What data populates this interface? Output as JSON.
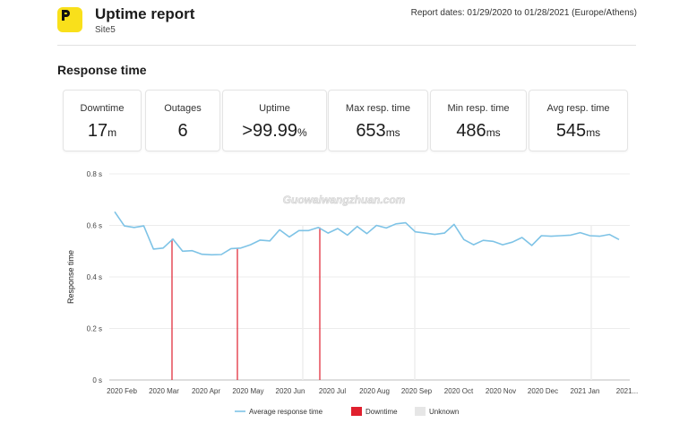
{
  "header": {
    "logo_letter": "p",
    "title": "Uptime report",
    "site": "Site5",
    "report_dates": "Report dates: 01/29/2020 to 01/28/2021 (Europe/Athens)",
    "logo_color": "#f9e01b"
  },
  "section": {
    "title": "Response time"
  },
  "stats": [
    {
      "label": "Downtime",
      "value": "17",
      "unit": "m"
    },
    {
      "label": "Outages",
      "value": "6",
      "unit": ""
    },
    {
      "label": "Uptime",
      "value": ">99.99",
      "unit": "%"
    },
    {
      "label": "Max resp. time",
      "value": "653",
      "unit": "ms"
    },
    {
      "label": "Min resp. time",
      "value": "486",
      "unit": "ms"
    },
    {
      "label": "Avg resp. time",
      "value": "545",
      "unit": "ms"
    }
  ],
  "watermark": "Guowaiwangzhuan.com",
  "chart_data": {
    "type": "line",
    "ylabel": "Response time",
    "y_ticks": [
      "0.8 s",
      "0.6 s",
      "0.4 s",
      "0.2 s",
      "0 s"
    ],
    "ylim": [
      0,
      0.8
    ],
    "x_ticks": [
      "2020 Feb",
      "2020 Mar",
      "2020 Apr",
      "2020 May",
      "2020 Jun",
      "2020 Jul",
      "2020 Aug",
      "2020 Sep",
      "2020 Oct",
      "2020 Nov",
      "2020 Dec",
      "2021 Jan",
      "2021..."
    ],
    "grid": "horizontal",
    "legend_position": "bottom",
    "series": [
      {
        "name": "Average response time",
        "color": "#7ec3e6",
        "values": [
          0.653,
          0.598,
          0.592,
          0.598,
          0.508,
          0.512,
          0.547,
          0.5,
          0.502,
          0.488,
          0.486,
          0.487,
          0.51,
          0.512,
          0.525,
          0.543,
          0.54,
          0.583,
          0.555,
          0.58,
          0.58,
          0.592,
          0.57,
          0.588,
          0.562,
          0.596,
          0.568,
          0.6,
          0.59,
          0.606,
          0.61,
          0.575,
          0.57,
          0.565,
          0.57,
          0.604,
          0.545,
          0.525,
          0.542,
          0.538,
          0.525,
          0.535,
          0.553,
          0.522,
          0.56,
          0.558,
          0.56,
          0.562,
          0.572,
          0.56,
          0.558,
          0.565,
          0.545
        ]
      }
    ],
    "downtime_events": [
      "2020 Mar",
      "2020 May",
      "2020 Jul"
    ],
    "legend": [
      {
        "label": "Average response time",
        "color": "#7ec3e6",
        "kind": "line"
      },
      {
        "label": "Downtime",
        "color": "#e0202e",
        "kind": "box"
      },
      {
        "label": "Unknown",
        "color": "#e6e6e6",
        "kind": "box"
      }
    ]
  }
}
